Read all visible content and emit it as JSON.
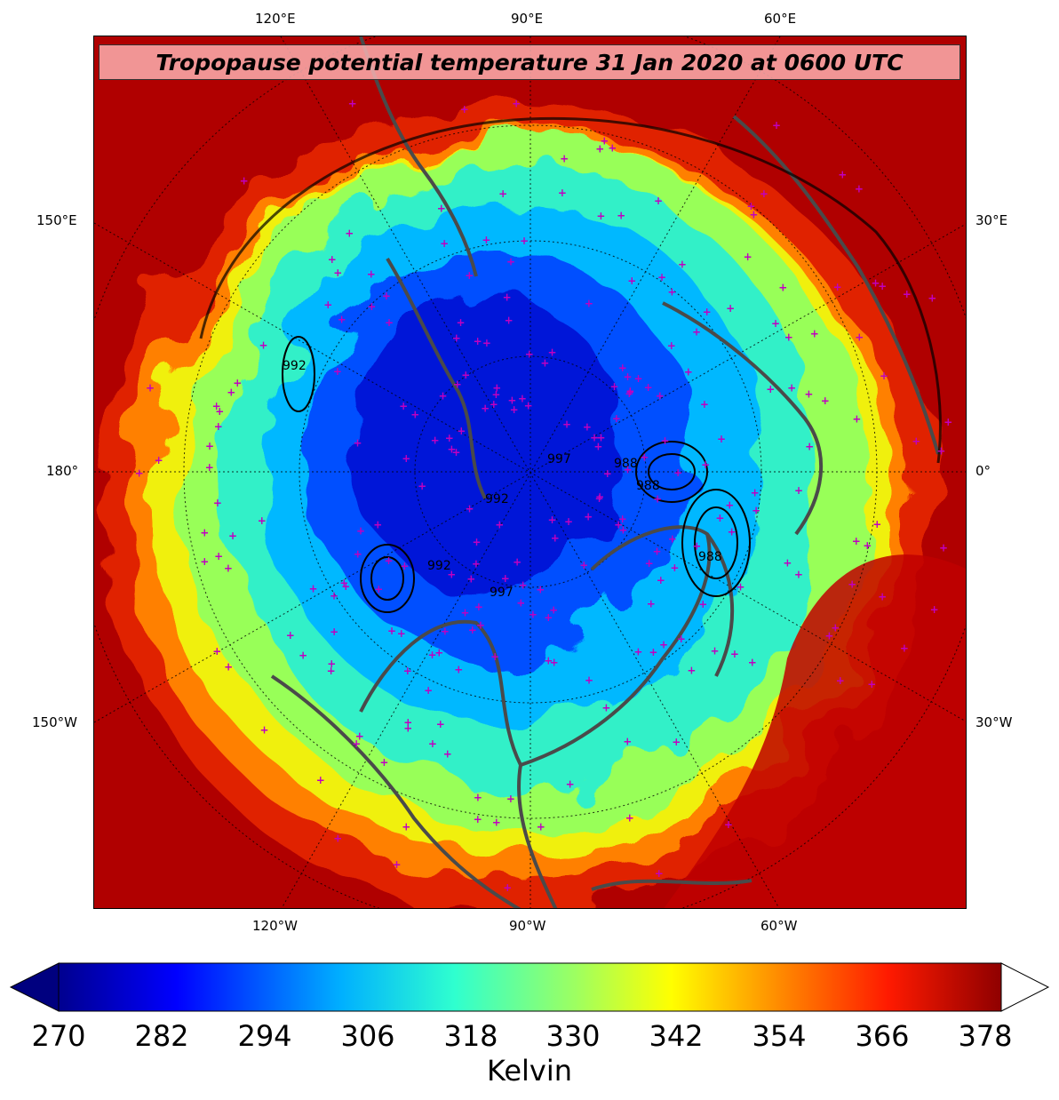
{
  "title": "Tropopause potential temperature 31 Jan 2020 at 0600 UTC",
  "map": {
    "projection": "north-polar-stereographic",
    "field": "tropopause potential temperature",
    "contours": "mean sea level pressure",
    "contour_labels": [
      "992",
      "992",
      "997",
      "992",
      "997",
      "988",
      "988",
      "988"
    ],
    "coastline_color": "#4a4a4a",
    "marker_color": "#c000c0",
    "marker_symbol": "+"
  },
  "lon_labels": {
    "top": [
      "120°E",
      "90°E",
      "60°E"
    ],
    "bottom": [
      "120°W",
      "90°W",
      "60°W"
    ],
    "left": [
      "150°E",
      "180°",
      "150°W"
    ],
    "right": [
      "30°E",
      "0°",
      "30°W"
    ]
  },
  "colorbar": {
    "label": "Kelvin",
    "min": 270,
    "max": 378,
    "extend": "both",
    "ticks": [
      "270",
      "282",
      "294",
      "306",
      "318",
      "330",
      "342",
      "354",
      "366",
      "378"
    ],
    "colormap": "jet",
    "stops": [
      "#00008f",
      "#0000ff",
      "#00b0ff",
      "#2fffcf",
      "#9fff5f",
      "#ffff00",
      "#ff8f00",
      "#ff1a00",
      "#8f0000"
    ]
  }
}
